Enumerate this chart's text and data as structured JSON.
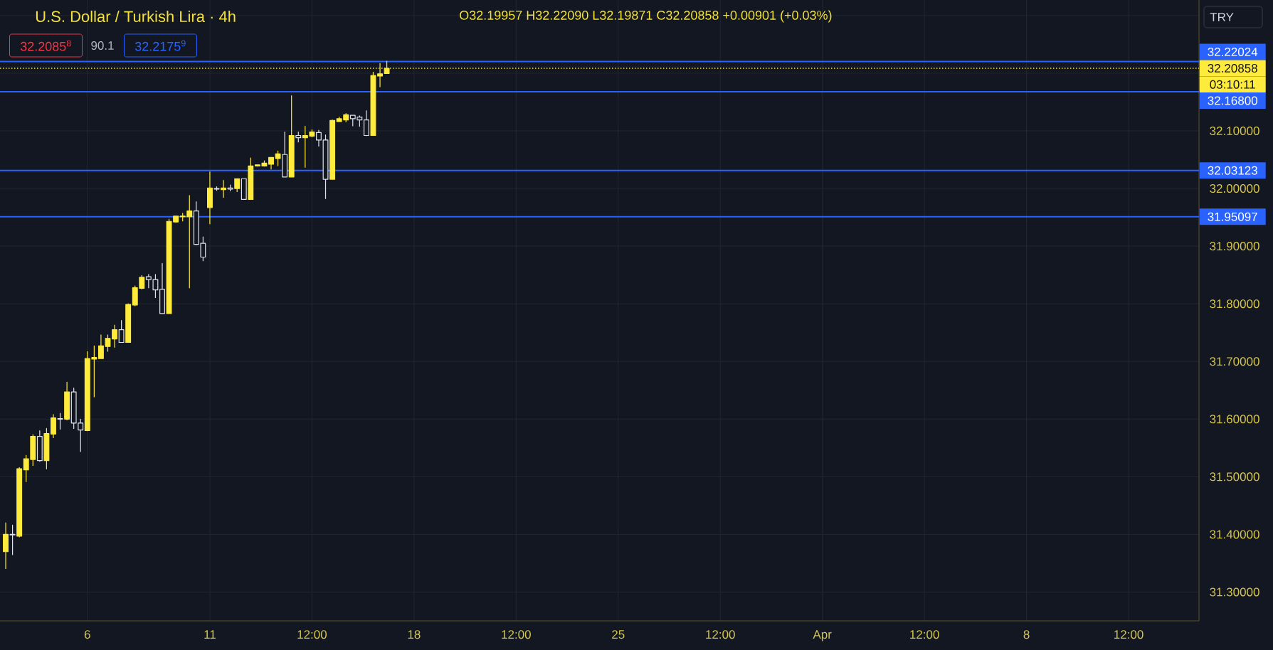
{
  "chart_data": {
    "type": "candlestick",
    "title": "U.S. Dollar / Turkish Lira · 4h",
    "ylabel": "TRY",
    "annotations": [
      "O32.19957 H32.22090 L32.19871 C32.20858 +0.00901 (+0.03%)",
      "32.2085$^{8}$",
      "90.1",
      "32.2175$^{9}$",
      "03:10:11"
    ],
    "categories": [
      null,
      null,
      null,
      null,
      null,
      null,
      null,
      null,
      null,
      null,
      null,
      null,
      "6",
      null,
      null,
      null,
      null,
      null,
      null,
      null,
      null,
      null,
      null,
      null,
      null,
      null,
      null,
      null,
      null,
      null,
      "11",
      null,
      null,
      null,
      null,
      null,
      null,
      null,
      null,
      null,
      null,
      null,
      null,
      null,
      null,
      "12:00",
      null,
      null,
      null,
      null,
      null,
      null,
      null,
      null,
      null,
      null,
      null,
      null,
      null,
      null,
      "18",
      null,
      null,
      null,
      null,
      null,
      null,
      null,
      null,
      null,
      null,
      null,
      null,
      null,
      null,
      "12:00",
      null,
      null,
      null,
      null,
      null,
      null,
      null,
      null,
      null,
      null,
      null,
      null,
      null,
      null,
      "25",
      null,
      null,
      null,
      null,
      null,
      null,
      null,
      null,
      null,
      null,
      null,
      null,
      null,
      null,
      "12:00",
      null,
      null,
      null,
      null,
      null,
      null,
      null,
      null,
      null,
      null,
      null,
      null,
      null,
      null,
      "Apr",
      null,
      null,
      null,
      null,
      null,
      null,
      null,
      null,
      null,
      null,
      null,
      null,
      null,
      null,
      "12:00",
      null,
      null,
      null,
      null,
      null,
      null,
      null,
      null,
      null,
      null,
      null,
      null,
      null,
      null,
      "8",
      null,
      null,
      null,
      null,
      null,
      null,
      null,
      null,
      null,
      null,
      null,
      null,
      null,
      null,
      "12:00",
      null,
      null,
      null,
      null,
      null,
      null,
      null,
      null,
      null,
      null
    ],
    "ohlc": [
      [
        31.37,
        31.42,
        31.34,
        31.4
      ],
      [
        31.4,
        31.416,
        31.364,
        31.399
      ],
      [
        31.397,
        31.516,
        31.395,
        31.514
      ],
      [
        31.512,
        31.537,
        31.491,
        31.531
      ],
      [
        31.53,
        31.573,
        31.519,
        31.57
      ],
      [
        31.57,
        31.58,
        31.526,
        31.528
      ],
      [
        31.528,
        31.584,
        31.513,
        31.575
      ],
      [
        31.574,
        31.608,
        31.567,
        31.602
      ],
      [
        31.601,
        31.61,
        31.582,
        31.6
      ],
      [
        31.6,
        31.664,
        31.598,
        31.647
      ],
      [
        31.647,
        31.654,
        31.583,
        31.593
      ],
      [
        31.593,
        31.6,
        31.543,
        31.581
      ],
      [
        31.58,
        31.717,
        31.579,
        31.705
      ],
      [
        31.704,
        31.727,
        31.638,
        31.707
      ],
      [
        31.705,
        31.746,
        31.705,
        31.727
      ],
      [
        31.726,
        31.746,
        31.717,
        31.74
      ],
      [
        31.739,
        31.763,
        31.724,
        31.755
      ],
      [
        31.755,
        31.771,
        31.733,
        31.733
      ],
      [
        31.733,
        31.8,
        31.733,
        31.799
      ],
      [
        31.798,
        31.831,
        31.796,
        31.828
      ],
      [
        31.827,
        31.849,
        31.825,
        31.846
      ],
      [
        31.847,
        31.851,
        31.827,
        31.842
      ],
      [
        31.842,
        31.851,
        31.81,
        31.824
      ],
      [
        31.825,
        31.87,
        31.783,
        31.783
      ],
      [
        31.783,
        31.947,
        31.783,
        31.943
      ],
      [
        31.942,
        31.952,
        31.941,
        31.952
      ],
      [
        31.951,
        31.957,
        31.943,
        31.952
      ],
      [
        31.951,
        31.988,
        31.827,
        31.961
      ],
      [
        31.961,
        31.977,
        31.902,
        31.903
      ],
      [
        31.905,
        31.916,
        31.874,
        31.881
      ],
      [
        31.967,
        32.029,
        31.938,
        32.001
      ],
      [
        32.0,
        32.003,
        31.996,
        31.999
      ],
      [
        31.998,
        32.014,
        31.984,
        32.001
      ],
      [
        32.001,
        32.006,
        31.995,
        31.999
      ],
      [
        32.0,
        32.017,
        31.994,
        32.017
      ],
      [
        32.017,
        32.017,
        31.981,
        31.981
      ],
      [
        31.981,
        32.053,
        31.981,
        32.039
      ],
      [
        32.039,
        32.041,
        32.038,
        32.041
      ],
      [
        32.039,
        32.048,
        32.038,
        32.044
      ],
      [
        32.042,
        32.054,
        32.033,
        32.054
      ],
      [
        32.052,
        32.065,
        32.039,
        32.06
      ],
      [
        32.059,
        32.098,
        32.02,
        32.02
      ],
      [
        32.02,
        32.161,
        32.02,
        32.092
      ],
      [
        32.092,
        32.098,
        32.08,
        32.088
      ],
      [
        32.088,
        32.108,
        32.036,
        32.092
      ],
      [
        32.091,
        32.102,
        32.089,
        32.098
      ],
      [
        32.097,
        32.101,
        32.073,
        32.084
      ],
      [
        32.084,
        32.093,
        31.982,
        32.016
      ],
      [
        32.016,
        32.119,
        32.016,
        32.118
      ],
      [
        32.116,
        32.124,
        32.116,
        32.121
      ],
      [
        32.119,
        32.13,
        32.115,
        32.128
      ],
      [
        32.127,
        32.127,
        32.108,
        32.121
      ],
      [
        32.124,
        32.126,
        32.107,
        32.119
      ],
      [
        32.119,
        32.135,
        32.091,
        32.092
      ],
      [
        32.092,
        32.202,
        32.092,
        32.196
      ],
      [
        32.195,
        32.217,
        32.176,
        32.199
      ],
      [
        32.19957,
        32.2209,
        32.19871,
        32.20858
      ],
      null,
      null,
      null,
      null,
      null,
      null,
      null,
      null,
      null,
      null,
      null,
      null,
      null,
      null,
      null,
      null,
      null,
      null,
      null,
      null,
      null,
      null,
      null,
      null,
      null,
      null,
      null,
      null,
      null,
      null,
      null,
      null,
      null,
      null,
      null,
      null,
      null,
      null,
      null,
      null,
      null,
      null,
      null,
      null,
      null,
      null,
      null,
      null,
      null,
      null,
      null,
      null,
      null,
      null,
      null,
      null,
      null,
      null,
      null,
      null,
      null,
      null,
      null,
      null,
      null,
      null,
      null,
      null,
      null,
      null,
      null,
      null,
      null,
      null,
      null,
      null,
      null,
      null,
      null,
      null,
      null,
      null,
      null,
      null,
      null,
      null,
      null,
      null,
      null,
      null,
      null,
      null,
      null,
      null,
      null,
      null,
      null,
      null,
      null,
      null,
      null,
      null,
      null,
      null,
      null,
      null,
      null,
      null,
      null,
      null,
      null,
      null,
      null,
      null,
      null,
      null,
      null,
      null,
      null
    ],
    "colors": [
      "#ffeb3b",
      "#e0e3eb",
      "#ffeb3b",
      "#ffeb3b",
      "#ffeb3b",
      "#e0e3eb",
      "#ffeb3b",
      "#ffeb3b",
      "#e0e3eb",
      "#ffeb3b",
      "#e0e3eb",
      "#e0e3eb",
      "#ffeb3b",
      "#ffeb3b",
      "#ffeb3b",
      "#ffeb3b",
      "#ffeb3b",
      "#e0e3eb",
      "#ffeb3b",
      "#ffeb3b",
      "#ffeb3b",
      "#e0e3eb",
      "#e0e3eb",
      "#e0e3eb",
      "#ffeb3b",
      "#ffeb3b",
      "#ffeb3b",
      "#ffeb3b",
      "#e0e3eb",
      "#e0e3eb",
      "#ffeb3b",
      "#e0e3eb",
      "#ffeb3b",
      "#e0e3eb",
      "#ffeb3b",
      "#e0e3eb",
      "#ffeb3b",
      "#ffeb3b",
      "#ffeb3b",
      "#ffeb3b",
      "#ffeb3b",
      "#e0e3eb",
      "#ffeb3b",
      "#e0e3eb",
      "#ffeb3b",
      "#ffeb3b",
      "#e0e3eb",
      "#e0e3eb",
      "#ffeb3b",
      "#ffeb3b",
      "#ffeb3b",
      "#e0e3eb",
      "#e0e3eb",
      "#e0e3eb",
      "#ffeb3b",
      "#ffeb3b",
      "#ffeb3b",
      null,
      null,
      null,
      null,
      null,
      null,
      null,
      null,
      null,
      null,
      null,
      null,
      null,
      null,
      null,
      null,
      null,
      null,
      null,
      null,
      null,
      null,
      null,
      null,
      null,
      null,
      null,
      null,
      null,
      null,
      null,
      null,
      null,
      null,
      null,
      null,
      null,
      null,
      null,
      null,
      null,
      null,
      null,
      null,
      null,
      null,
      null,
      null,
      null,
      null,
      null,
      null,
      null,
      null,
      null,
      null,
      null,
      null,
      null,
      null,
      null,
      null,
      null,
      null,
      null,
      null,
      null,
      null,
      null,
      null,
      null,
      null,
      null,
      null,
      null,
      null,
      null,
      null,
      null,
      null,
      null,
      null,
      null,
      null,
      null,
      null,
      null,
      null,
      null,
      null,
      null,
      null,
      null,
      null,
      null,
      null,
      null,
      null,
      null,
      null,
      null,
      null,
      null,
      null,
      null,
      null,
      null,
      null,
      null,
      null,
      null,
      null,
      null,
      null,
      null,
      null,
      null,
      null,
      null
    ],
    "ylim": [
      31.25,
      32.327
    ],
    "yticks": [
      {
        "value": 31.3,
        "label": "31.30000"
      },
      {
        "value": 31.4,
        "label": "31.40000"
      },
      {
        "value": 31.5,
        "label": "31.50000"
      },
      {
        "value": 31.6,
        "label": "31.60000"
      },
      {
        "value": 31.7,
        "label": "31.70000"
      },
      {
        "value": 31.8,
        "label": "31.80000"
      },
      {
        "value": 31.9,
        "label": "31.90000"
      },
      {
        "value": 32.0,
        "label": "32.00000"
      },
      {
        "value": 32.1,
        "label": "32.10000"
      },
      {
        "value": 32.2,
        "label": null
      },
      {
        "value": 32.3,
        "label": null
      }
    ],
    "grid": true,
    "ref_lines": [
      {
        "axis": "y",
        "value": 32.22024,
        "label": "32.22024",
        "color": "#2962ff"
      },
      {
        "axis": "y",
        "value": 32.20858,
        "label": "32.20858",
        "color": "#ffeb3b",
        "line_style": "dotted"
      },
      {
        "axis": "y",
        "value": 32.168,
        "label": "32.16800",
        "color": "#2962ff"
      },
      {
        "axis": "y",
        "value": 32.03123,
        "label": "32.03123",
        "color": "#2962ff"
      },
      {
        "axis": "y",
        "value": 31.95097,
        "label": "31.95097",
        "color": "#2962ff"
      }
    ]
  }
}
